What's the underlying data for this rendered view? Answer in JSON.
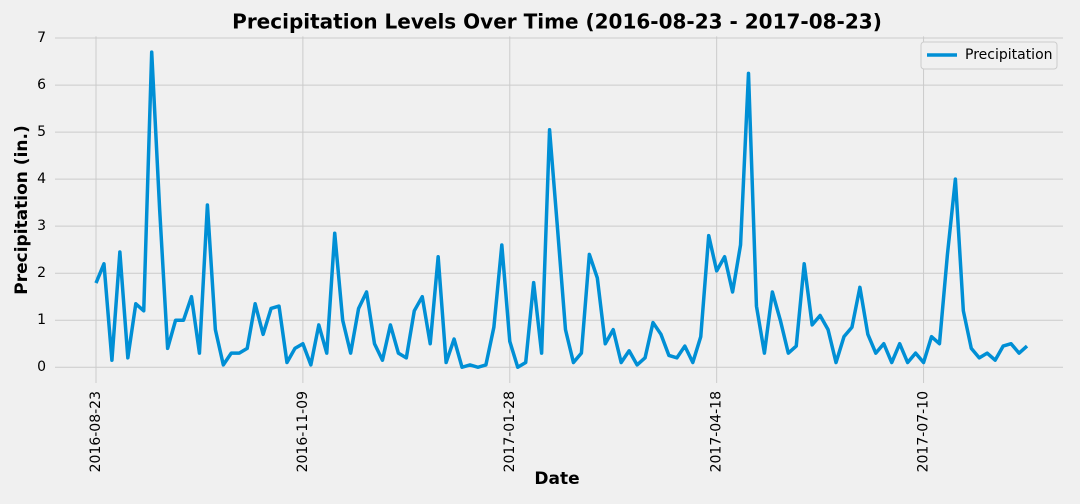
{
  "chart_data": {
    "type": "line",
    "title": "Precipitation Levels Over Time (2016-08-23 - 2017-08-23)",
    "x_label": "Date",
    "y_label": "Precipitation (in.)",
    "categories": [
      "2016-08-23",
      "2016-08-26",
      "2016-08-29",
      "2016-09-01",
      "2016-09-04",
      "2016-09-07",
      "2016-09-10",
      "2016-09-13",
      "2016-09-16",
      "2016-09-19",
      "2016-09-22",
      "2016-09-25",
      "2016-09-28",
      "2016-10-01",
      "2016-10-04",
      "2016-10-07",
      "2016-10-10",
      "2016-10-13",
      "2016-10-16",
      "2016-10-19",
      "2016-10-22",
      "2016-10-25",
      "2016-10-28",
      "2016-10-31",
      "2016-11-03",
      "2016-11-06",
      "2016-11-09",
      "2016-11-12",
      "2016-11-15",
      "2016-11-18",
      "2016-11-21",
      "2016-11-24",
      "2016-11-27",
      "2016-11-30",
      "2016-12-03",
      "2016-12-06",
      "2016-12-09",
      "2016-12-12",
      "2016-12-15",
      "2016-12-18",
      "2016-12-21",
      "2016-12-24",
      "2016-12-27",
      "2016-12-30",
      "2017-01-02",
      "2017-01-05",
      "2017-01-08",
      "2017-01-11",
      "2017-01-14",
      "2017-01-17",
      "2017-01-20",
      "2017-01-24",
      "2017-01-28",
      "2017-01-31",
      "2017-02-03",
      "2017-02-06",
      "2017-02-09",
      "2017-02-12",
      "2017-02-15",
      "2017-02-18",
      "2017-02-21",
      "2017-02-24",
      "2017-02-27",
      "2017-03-02",
      "2017-03-05",
      "2017-03-08",
      "2017-03-11",
      "2017-03-14",
      "2017-03-17",
      "2017-03-20",
      "2017-03-23",
      "2017-03-26",
      "2017-03-29",
      "2017-04-01",
      "2017-04-04",
      "2017-04-07",
      "2017-04-10",
      "2017-04-14",
      "2017-04-18",
      "2017-04-21",
      "2017-04-24",
      "2017-04-27",
      "2017-04-30",
      "2017-05-03",
      "2017-05-06",
      "2017-05-09",
      "2017-05-12",
      "2017-05-15",
      "2017-05-18",
      "2017-05-21",
      "2017-05-24",
      "2017-05-27",
      "2017-05-30",
      "2017-06-02",
      "2017-06-05",
      "2017-06-08",
      "2017-06-11",
      "2017-06-14",
      "2017-06-17",
      "2017-06-20",
      "2017-06-23",
      "2017-06-27",
      "2017-07-01",
      "2017-07-05",
      "2017-07-10",
      "2017-07-13",
      "2017-07-16",
      "2017-07-19",
      "2017-07-22",
      "2017-07-25",
      "2017-07-28",
      "2017-07-31",
      "2017-08-03",
      "2017-08-07",
      "2017-08-11",
      "2017-08-15",
      "2017-08-19",
      "2017-08-23"
    ],
    "series": [
      {
        "name": "Precipitation",
        "color": "#008fd5",
        "values": [
          1.79,
          2.2,
          0.15,
          2.45,
          0.2,
          1.35,
          1.2,
          6.7,
          3.35,
          0.4,
          1.0,
          1.0,
          1.5,
          0.3,
          3.45,
          0.8,
          0.05,
          0.3,
          0.3,
          0.4,
          1.35,
          0.7,
          1.25,
          1.3,
          0.1,
          0.4,
          0.5,
          0.05,
          0.9,
          0.3,
          2.85,
          1.0,
          0.3,
          1.25,
          1.6,
          0.5,
          0.15,
          0.9,
          0.3,
          0.2,
          1.2,
          1.5,
          0.5,
          2.35,
          0.1,
          0.6,
          0.0,
          0.05,
          0.0,
          0.05,
          0.85,
          2.6,
          0.55,
          0.0,
          0.1,
          1.8,
          0.3,
          5.05,
          2.95,
          0.8,
          0.1,
          0.3,
          2.4,
          1.9,
          0.5,
          0.8,
          0.1,
          0.35,
          0.05,
          0.2,
          0.95,
          0.7,
          0.25,
          0.2,
          0.45,
          0.1,
          0.65,
          2.8,
          2.05,
          2.35,
          1.6,
          2.6,
          6.25,
          1.3,
          0.3,
          1.6,
          1.0,
          0.3,
          0.45,
          2.2,
          0.9,
          1.1,
          0.8,
          0.1,
          0.65,
          0.85,
          1.7,
          0.7,
          0.3,
          0.5,
          0.1,
          0.5,
          0.1,
          0.3,
          0.1,
          0.65,
          0.5,
          2.4,
          4.0,
          1.2,
          0.4,
          0.2,
          0.3,
          0.15,
          0.45,
          0.5,
          0.3,
          0.45
        ]
      }
    ],
    "xticks": [
      "2016-08-23",
      "2016-11-09",
      "2017-01-28",
      "2017-04-18",
      "2017-07-10"
    ],
    "ylim": [
      -0.335,
      7.035
    ],
    "yticks": [
      0,
      1,
      2,
      3,
      4,
      5,
      6,
      7
    ],
    "grid": true,
    "legend": "upper right"
  }
}
